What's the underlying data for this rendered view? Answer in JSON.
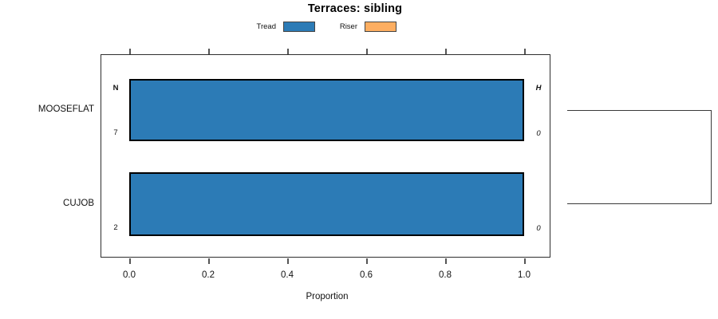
{
  "chart_data": {
    "type": "bar",
    "orientation": "horizontal",
    "title": "Terraces: sibling",
    "xlabel": "Proportion",
    "xlim": [
      0.0,
      1.0
    ],
    "x_ticks": [
      0.0,
      0.2,
      0.4,
      0.6,
      0.8,
      1.0
    ],
    "x_tick_labels": [
      "0.0",
      "0.2",
      "0.4",
      "0.6",
      "0.8",
      "1.0"
    ],
    "categories": [
      "MOOSEFLAT",
      "CUJOB"
    ],
    "series": [
      {
        "name": "Tread",
        "color": "#2C7BB6",
        "values": [
          1.0,
          1.0
        ]
      },
      {
        "name": "Riser",
        "color": "#FDAE61",
        "values": [
          0.0,
          0.0
        ]
      }
    ],
    "annotations": {
      "left_column_header": "N",
      "right_column_header": "H",
      "left_column_values": [
        "7",
        "2"
      ],
      "right_column_values": [
        "0",
        "0"
      ]
    },
    "legend_position": "top",
    "grid": false,
    "dendrogram": {
      "present": true,
      "side": "right",
      "joined_leaves": [
        "MOOSEFLAT",
        "CUJOB"
      ]
    }
  },
  "colors": {
    "tread_fill": "#2C7BB6",
    "riser_fill": "#FDAE61",
    "bar_border": "#000000",
    "box_border": "#2e2e2e"
  }
}
